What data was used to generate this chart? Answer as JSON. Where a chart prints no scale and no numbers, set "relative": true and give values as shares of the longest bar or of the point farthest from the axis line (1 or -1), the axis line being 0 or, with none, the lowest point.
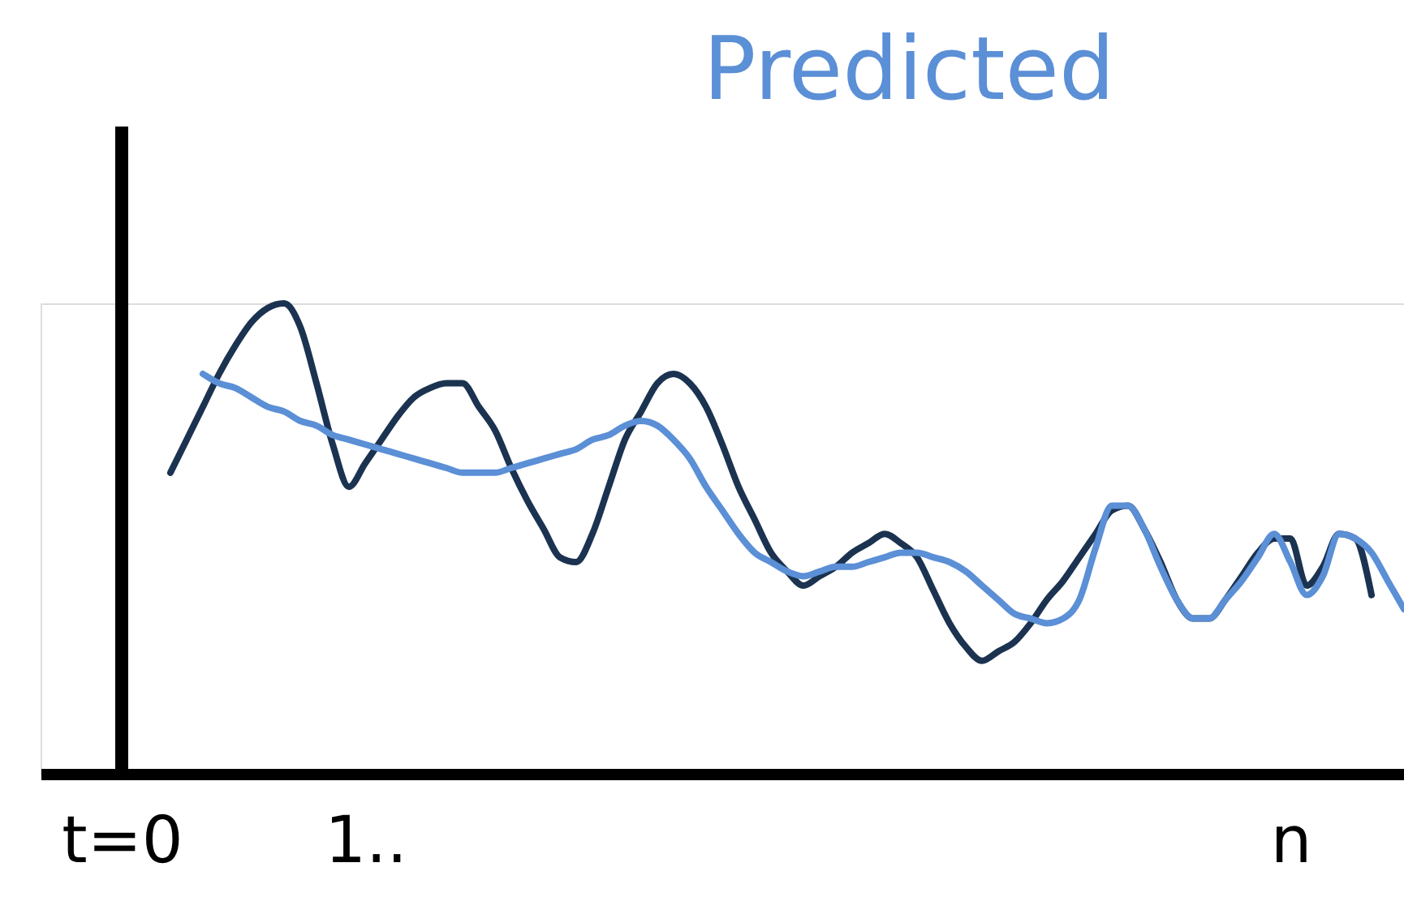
{
  "chart_data": {
    "type": "line",
    "relative": true,
    "tick_labels": "x",
    "line_style": "solid",
    "marker": "none",
    "categories": [
      null,
      null,
      null,
      null,
      null,
      "t=0",
      null,
      null,
      null,
      null,
      null,
      null,
      null,
      null,
      null,
      null,
      null,
      null,
      null,
      null,
      "1..",
      null,
      null,
      null,
      null,
      null,
      null,
      null,
      null,
      null,
      null,
      null,
      null,
      null,
      null,
      null,
      null,
      null,
      null,
      null,
      null,
      null,
      null,
      null,
      null,
      null,
      null,
      null,
      null,
      null,
      null,
      null,
      null,
      null,
      null,
      null,
      null,
      null,
      null,
      null,
      null,
      null,
      null,
      null,
      null,
      null,
      null,
      null,
      null,
      null,
      null,
      null,
      null,
      null,
      null,
      null,
      null,
      "n",
      null,
      null,
      null,
      null,
      null,
      null,
      null
    ],
    "series": [
      {
        "color": "#1b3350",
        "values": [
          null,
          null,
          null,
          null,
          null,
          null,
          null,
          null,
          0.64,
          0.71,
          0.78,
          0.85,
          0.91,
          0.96,
          0.99,
          1.0,
          0.95,
          0.83,
          0.7,
          0.61,
          0.66,
          0.71,
          0.76,
          0.8,
          0.82,
          0.83,
          0.83,
          0.78,
          0.73,
          0.65,
          0.58,
          0.52,
          0.46,
          0.45,
          0.51,
          0.61,
          0.71,
          0.77,
          0.83,
          0.85,
          0.83,
          0.78,
          0.7,
          0.61,
          0.54,
          0.47,
          0.43,
          0.4,
          0.42,
          0.44,
          0.47,
          0.49,
          0.51,
          0.49,
          0.46,
          0.39,
          0.32,
          0.27,
          0.24,
          0.26,
          0.28,
          0.32,
          0.37,
          0.41,
          0.46,
          0.51,
          0.56,
          0.57,
          0.52,
          0.45,
          0.37,
          0.33,
          0.33,
          0.37,
          0.42,
          0.47,
          0.5,
          0.5,
          0.4,
          0.44,
          0.51,
          0.5,
          0.38,
          null,
          null
        ]
      },
      {
        "name": "Predicted",
        "color": "#5b8fd6",
        "values": [
          null,
          null,
          null,
          null,
          null,
          null,
          null,
          null,
          null,
          null,
          0.85,
          0.83,
          0.82,
          0.8,
          0.78,
          0.77,
          0.75,
          0.74,
          0.72,
          0.71,
          0.7,
          0.69,
          0.68,
          0.67,
          0.66,
          0.65,
          0.64,
          0.64,
          0.64,
          0.65,
          0.66,
          0.67,
          0.68,
          0.69,
          0.71,
          0.72,
          0.74,
          0.75,
          0.74,
          0.71,
          0.67,
          0.61,
          0.56,
          0.51,
          0.47,
          0.45,
          0.43,
          0.42,
          0.43,
          0.44,
          0.44,
          0.45,
          0.46,
          0.47,
          0.47,
          0.46,
          0.45,
          0.43,
          0.4,
          0.37,
          0.34,
          0.33,
          0.32,
          0.33,
          0.37,
          0.48,
          0.57,
          0.57,
          0.52,
          0.44,
          0.37,
          0.33,
          0.33,
          0.37,
          0.41,
          0.46,
          0.51,
          0.45,
          0.38,
          0.42,
          0.51,
          0.5,
          0.47,
          0.41,
          0.35
        ]
      }
    ]
  }
}
